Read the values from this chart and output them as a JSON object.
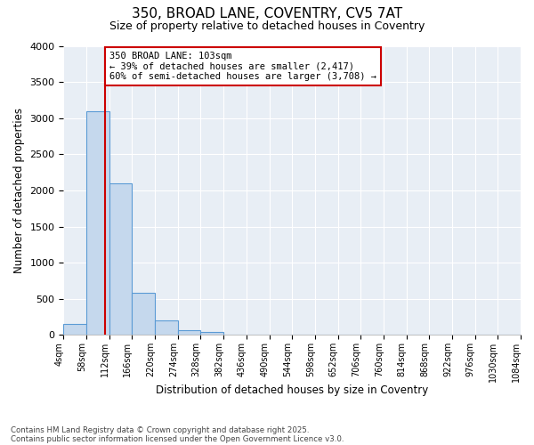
{
  "title1": "350, BROAD LANE, COVENTRY, CV5 7AT",
  "title2": "Size of property relative to detached houses in Coventry",
  "xlabel": "Distribution of detached houses by size in Coventry",
  "ylabel": "Number of detached properties",
  "bin_edges": [
    4,
    58,
    112,
    166,
    220,
    274,
    328,
    382,
    436,
    490,
    544,
    598,
    652,
    706,
    760,
    814,
    868,
    922,
    976,
    1030,
    1084
  ],
  "bar_heights": [
    150,
    3100,
    2100,
    580,
    200,
    70,
    40,
    5,
    3,
    2,
    2,
    1,
    1,
    1,
    1,
    1,
    1,
    1,
    1,
    1
  ],
  "bar_color": "#c5d8ed",
  "bar_edgecolor": "#5b9bd5",
  "property_size": 103,
  "red_line_color": "#cc0000",
  "annotation_text": "350 BROAD LANE: 103sqm\n← 39% of detached houses are smaller (2,417)\n60% of semi-detached houses are larger (3,708) →",
  "annotation_box_color": "#cc0000",
  "ylim": [
    0,
    4000
  ],
  "yticks": [
    0,
    500,
    1000,
    1500,
    2000,
    2500,
    3000,
    3500,
    4000
  ],
  "footer1": "Contains HM Land Registry data © Crown copyright and database right 2025.",
  "footer2": "Contains public sector information licensed under the Open Government Licence v3.0.",
  "bg_color": "#ffffff",
  "plot_bg_color": "#e8eef5"
}
